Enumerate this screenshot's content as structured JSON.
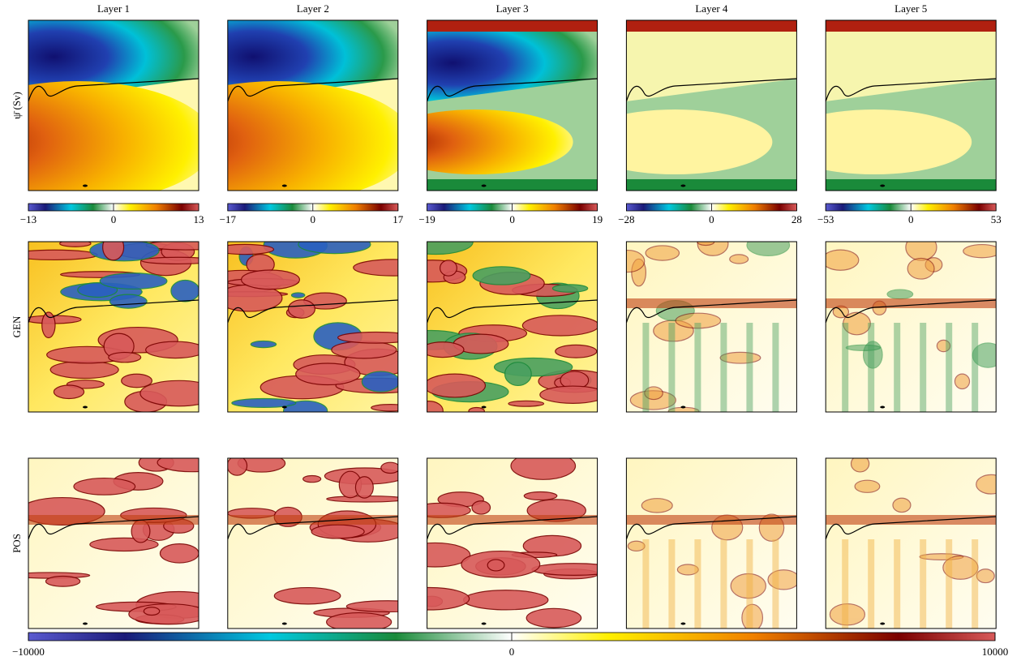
{
  "chart_data": [
    {
      "type": "heatmap",
      "title": "Layer 1",
      "clim": [
        -13,
        13
      ],
      "cticks": [
        {
          "value": -13,
          "label": "−13"
        },
        0,
        13
      ]
    },
    {
      "type": "heatmap",
      "title": "Layer 2",
      "clim": [
        -17,
        17
      ],
      "cticks": [
        {
          "value": -17,
          "label": "−17"
        },
        0,
        17
      ]
    },
    {
      "type": "heatmap",
      "title": "Layer 3",
      "clim": [
        -19,
        19
      ],
      "cticks": [
        {
          "value": -19,
          "label": "−19"
        },
        0,
        19
      ]
    },
    {
      "type": "heatmap",
      "title": "Layer 4",
      "clim": [
        -28,
        28
      ],
      "cticks": [
        {
          "value": -28,
          "label": "−28"
        },
        0,
        28
      ]
    },
    {
      "type": "heatmap",
      "title": "Layer 5",
      "clim": [
        -53,
        53
      ],
      "cticks": [
        {
          "value": -53,
          "label": "−53"
        },
        0,
        53
      ]
    }
  ],
  "row_labels": [
    "ψ̄ (Sv)",
    "GEN",
    "POS"
  ],
  "shared_colorbar": {
    "clim": [
      -10000,
      10000
    ],
    "cticks": [
      {
        "value": -10000,
        "label": "−10000"
      },
      0,
      10000
    ]
  }
}
